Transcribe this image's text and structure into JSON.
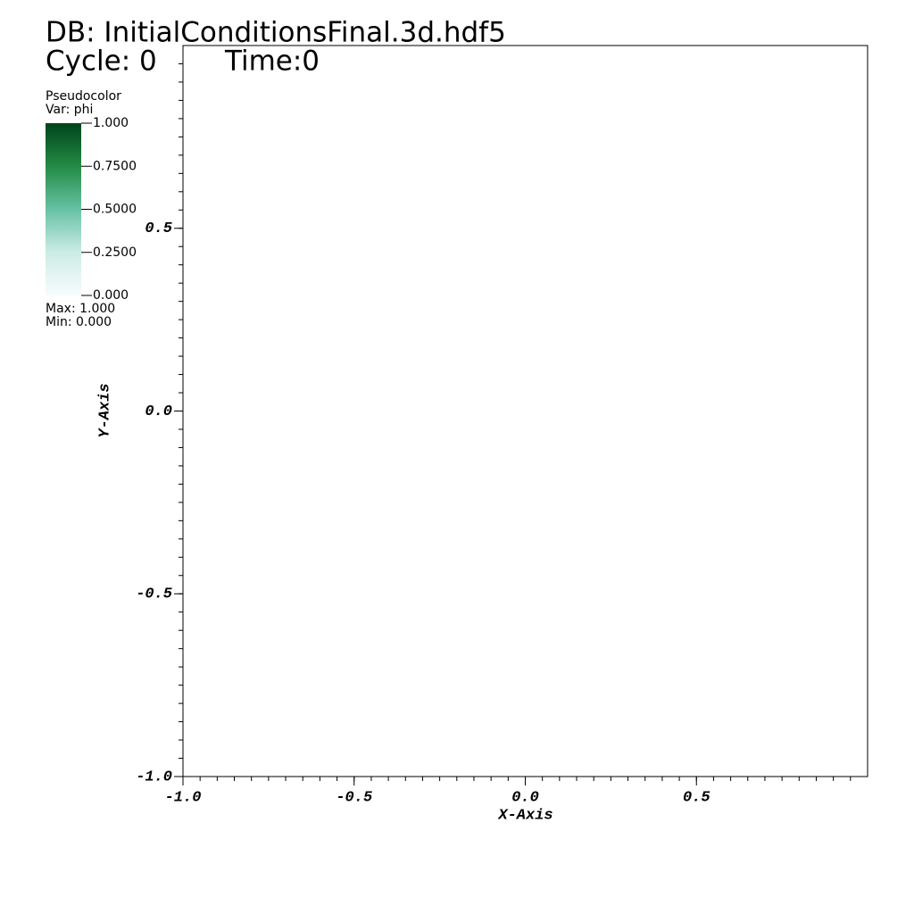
{
  "chart_data": {
    "type": "pseudocolor",
    "title": "DB: InitialConditionsFinal.3d.hdf5",
    "cycle": "Cycle: 0",
    "time": "Time:0",
    "xlabel": "X-Axis",
    "ylabel": "Y-Axis",
    "xlim": [
      -1,
      1
    ],
    "ylim": [
      -1,
      1
    ],
    "xticks": [
      {
        "value": -1,
        "label": "-1.0"
      },
      -0.5,
      {
        "value": 0,
        "label": "0.0"
      },
      0.5
    ],
    "yticks": [
      {
        "value": -1,
        "label": "-1.0"
      },
      -0.5,
      {
        "value": 0,
        "label": "0.0"
      },
      0.5
    ],
    "legend": {
      "title": "Pseudocolor",
      "var": "Var: phi",
      "max": "Max:  1.000",
      "min": "Min:  0.000",
      "clim": [
        0,
        1
      ],
      "cticks": [
        {
          "value": 1,
          "label": "1.000"
        },
        {
          "value": 0.75,
          "label": "0.7500"
        },
        {
          "value": 0.5,
          "label": "0.5000"
        },
        {
          "value": 0.25,
          "label": "0.2500"
        },
        {
          "value": 0,
          "label": "0.000"
        }
      ],
      "colormap": [
        "#f7fcfd",
        "#ccece6",
        "#66c2a4",
        "#238b45",
        "#00441b"
      ]
    }
  }
}
